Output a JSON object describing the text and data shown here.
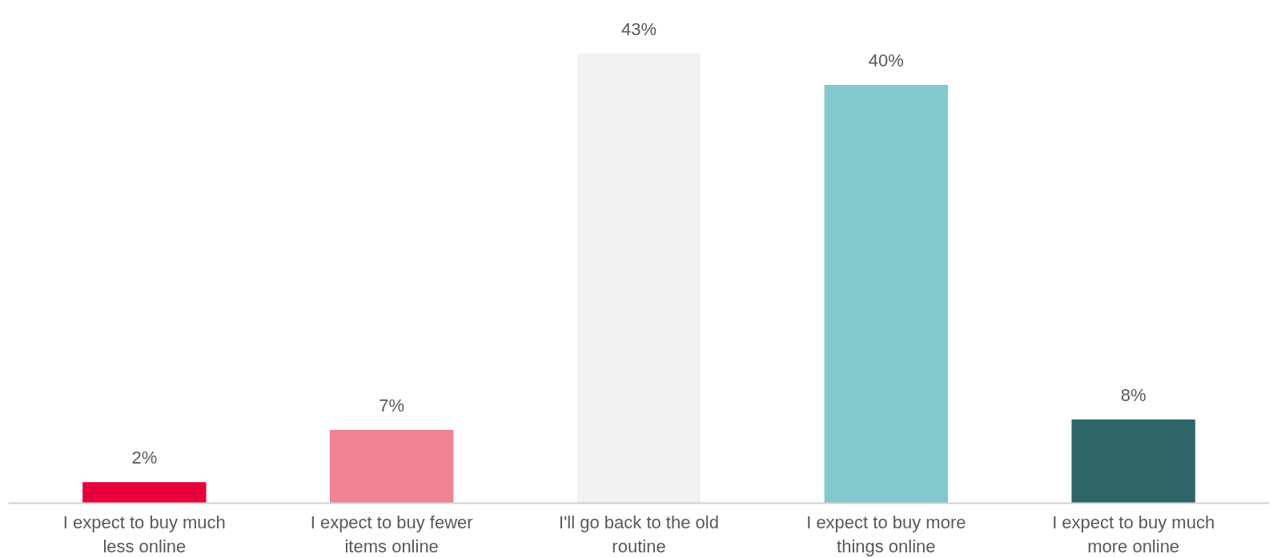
{
  "chart_data": {
    "type": "bar",
    "categories": [
      "I expect to buy much less online",
      "I expect to buy fewer items online",
      "I'll go back to the old routine",
      "I expect to buy more things online",
      "I expect to buy much more online"
    ],
    "values": [
      2,
      7,
      43,
      40,
      8
    ],
    "colors": [
      "#e8003d",
      "#f08296",
      "#f2f2f2",
      "#82c8cc",
      "#2e6566"
    ],
    "value_labels": [
      "2%",
      "7%",
      "43%",
      "40%",
      "8%"
    ],
    "grid": false,
    "tick_labels": "x"
  }
}
